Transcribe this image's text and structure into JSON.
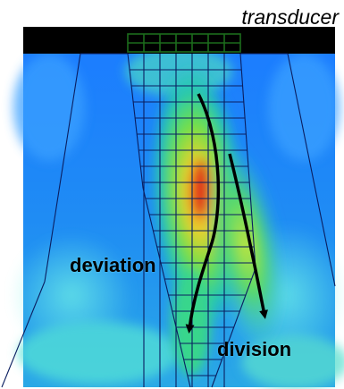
{
  "labels": {
    "transducer": "transducer",
    "deviation": "deviation",
    "division": "division"
  },
  "colors": {
    "field_background": "#1a73ff",
    "beam_core": "#d8301c",
    "beam_high": "#e6e02a",
    "beam_mid": "#3ad66b",
    "grid_line": "#0a1e60",
    "transducer_bar": "#000000",
    "arrow": "#000000"
  },
  "icons": {
    "transducer_probe": "transducer-probe-icon",
    "arrow": "curved-arrow-icon"
  }
}
